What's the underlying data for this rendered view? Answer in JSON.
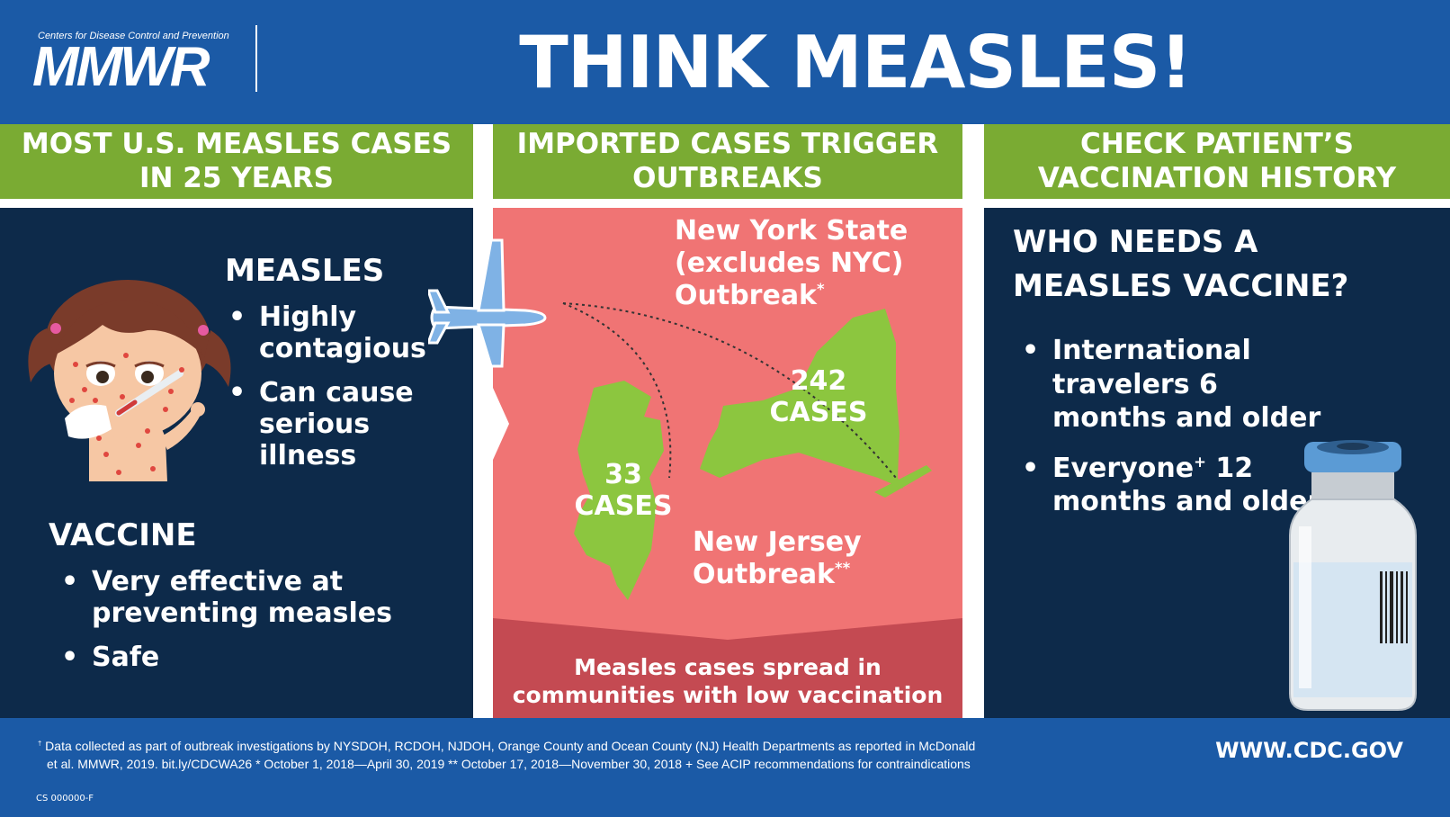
{
  "header": {
    "org_small": "Centers for Disease Control and Prevention",
    "logo": "MMWR",
    "title": "THINK MEASLES!"
  },
  "panel1": {
    "heading_line1": "MOST U.S. MEASLES CASES",
    "heading_line2": "IN 25 YEARS",
    "measles_title": "MEASLES",
    "measles_bullets": [
      "Highly contagious",
      "Can cause serious illness"
    ],
    "vaccine_title": "VACCINE",
    "vaccine_bullets": [
      "Very effective at preventing measles",
      "Safe"
    ]
  },
  "panel2": {
    "heading_line1": "IMPORTED CASES TRIGGER",
    "heading_line2": "OUTBREAKS",
    "ny_label_line1": "New York State",
    "ny_label_line2": "(excludes NYC)",
    "ny_label_line3": "Outbreak",
    "ny_mark": "*",
    "ny_cases_num": "242",
    "ny_cases_word": "CASES",
    "nj_cases_num": "33",
    "nj_cases_word": "CASES",
    "nj_label_line1": "New Jersey",
    "nj_label_line2": "Outbreak",
    "nj_mark": "**",
    "spread_line1": "Measles cases spread in",
    "spread_line2": "communities with low vaccination"
  },
  "panel3": {
    "heading_line1": "CHECK PATIENT’S",
    "heading_line2": "VACCINATION HISTORY",
    "question_line1": "WHO NEEDS A",
    "question_line2": "MEASLES VACCINE?",
    "bullet1": "International travelers 6 months and older",
    "bullet2_a": "Everyone",
    "bullet2_mark": "+",
    "bullet2_b": "12 months and older"
  },
  "footer": {
    "line1": "Data collected as part of outbreak investigations by NYSDOH, RCDOH, NJDOH, Orange County and Ocean County (NJ) Health Departments as reported in McDonald",
    "line2": "et al. MMWR, 2019.  bit.ly/CDCWA26     * October 1, 2018—April 30, 2019     ** October 17, 2018—November 30, 2018     + See ACIP recommendations for contraindications",
    "mark": "†",
    "url": "WWW.CDC.GOV",
    "code": "CS 000000-F"
  },
  "colors": {
    "header_blue": "#1b5aa6",
    "navy": "#0d2a4a",
    "green": "#7aab33",
    "salmon": "#f07474",
    "state_green": "#8cc63f"
  }
}
